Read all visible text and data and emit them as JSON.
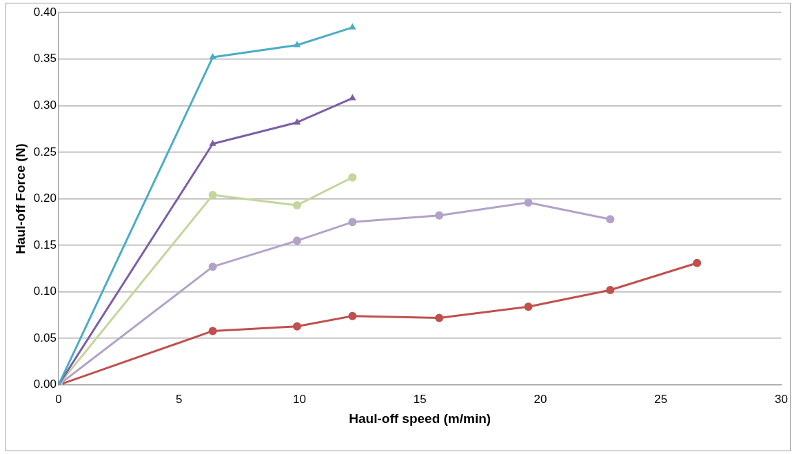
{
  "chart_data": {
    "type": "line",
    "xlabel": "Haul-off speed (m/min)",
    "ylabel": "Haul-off Force (N)",
    "xlim": [
      0,
      30
    ],
    "xticks": [
      0,
      5,
      10,
      15,
      20,
      25,
      30
    ],
    "ylim": [
      0,
      0.4
    ],
    "yticks": [
      {
        "value": 0,
        "label": "0.00"
      },
      {
        "value": 0.05,
        "label": "0.05"
      },
      {
        "value": 0.1,
        "label": "0.10"
      },
      {
        "value": 0.15,
        "label": "0.15"
      },
      {
        "value": 0.2,
        "label": "0.20"
      },
      {
        "value": 0.25,
        "label": "0.25"
      },
      {
        "value": 0.3,
        "label": "0.30"
      },
      {
        "value": 0.35,
        "label": "0.35"
      },
      {
        "value": 0.4,
        "label": "0.40"
      }
    ],
    "grid": "y",
    "legend": false,
    "line_style": "solid",
    "series": [
      {
        "color": "#4bacc6",
        "marker": "triangle",
        "x": [
          0,
          6.4,
          9.9,
          12.2
        ],
        "values": [
          0,
          0.352,
          0.365,
          0.384
        ]
      },
      {
        "color": "#7b5ea7",
        "marker": "triangle",
        "x": [
          0,
          6.4,
          9.9,
          12.2
        ],
        "values": [
          0,
          0.259,
          0.282,
          0.308
        ]
      },
      {
        "color": "#c3d69b",
        "marker": "circle",
        "x": [
          0,
          6.4,
          9.9,
          12.2
        ],
        "values": [
          0,
          0.204,
          0.193,
          0.223
        ]
      },
      {
        "color": "#b3a2c7",
        "marker": "circle",
        "x": [
          0,
          6.4,
          9.9,
          12.2,
          15.8,
          19.5,
          22.9
        ],
        "values": [
          0,
          0.127,
          0.155,
          0.175,
          0.182,
          0.196,
          0.178
        ]
      },
      {
        "color": "#c0504d",
        "marker": "circle",
        "x": [
          0,
          6.4,
          9.9,
          12.2,
          15.8,
          19.5,
          22.9,
          26.5
        ],
        "values": [
          0,
          0.058,
          0.063,
          0.074,
          0.072,
          0.084,
          0.102,
          0.131
        ]
      }
    ]
  }
}
